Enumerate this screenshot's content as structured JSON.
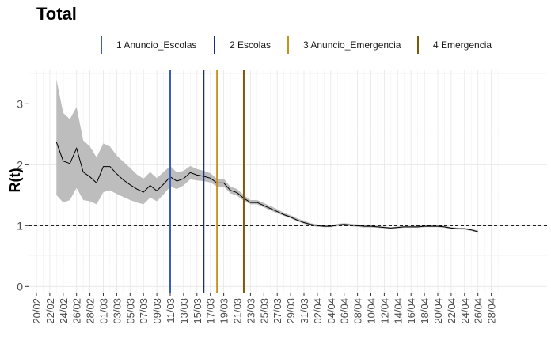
{
  "chart_data": {
    "type": "line",
    "title": "Total",
    "xlabel": "",
    "ylabel": "R(t)",
    "ylim": [
      -0.1,
      3.55
    ],
    "yticks": [
      0,
      1,
      2,
      3
    ],
    "x_tick_labels": [
      "20/02",
      "22/02",
      "24/02",
      "26/02",
      "28/02",
      "01/03",
      "03/03",
      "05/03",
      "07/03",
      "09/03",
      "11/03",
      "13/03",
      "15/03",
      "17/03",
      "19/03",
      "21/03",
      "23/03",
      "25/03",
      "27/03",
      "29/03",
      "31/03",
      "02/04",
      "04/04",
      "06/04",
      "08/04",
      "10/04",
      "12/04",
      "14/04",
      "16/04",
      "18/04",
      "20/04",
      "22/04",
      "24/04",
      "26/04",
      "28/04"
    ],
    "grid": true,
    "reference_line": {
      "y": 1,
      "style": "dashed"
    },
    "x": [
      "23/02",
      "24/02",
      "25/02",
      "26/02",
      "27/02",
      "28/02",
      "29/02",
      "01/03",
      "02/03",
      "03/03",
      "04/03",
      "05/03",
      "06/03",
      "07/03",
      "08/03",
      "09/03",
      "10/03",
      "11/03",
      "12/03",
      "13/03",
      "14/03",
      "15/03",
      "16/03",
      "17/03",
      "18/03",
      "19/03",
      "20/03",
      "21/03",
      "22/03",
      "23/03",
      "24/03",
      "25/03",
      "26/03",
      "27/03",
      "28/03",
      "29/03",
      "30/03",
      "31/03",
      "01/04",
      "02/04",
      "03/04",
      "04/04",
      "05/04",
      "06/04",
      "07/04",
      "08/04",
      "09/04",
      "10/04",
      "11/04",
      "12/04",
      "13/04",
      "14/04",
      "15/04",
      "16/04",
      "17/04",
      "18/04",
      "19/04",
      "20/04",
      "21/04",
      "22/04",
      "23/04",
      "24/04",
      "25/04",
      "26/04"
    ],
    "series": [
      {
        "values": [
          2.37,
          2.06,
          2.02,
          2.27,
          1.88,
          1.8,
          1.7,
          1.97,
          1.97,
          1.85,
          1.75,
          1.67,
          1.6,
          1.55,
          1.66,
          1.57,
          1.68,
          1.8,
          1.73,
          1.77,
          1.87,
          1.83,
          1.81,
          1.78,
          1.7,
          1.7,
          1.58,
          1.54,
          1.45,
          1.38,
          1.38,
          1.33,
          1.28,
          1.23,
          1.18,
          1.14,
          1.09,
          1.05,
          1.02,
          1.0,
          0.99,
          0.99,
          1.01,
          1.02,
          1.01,
          1.0,
          0.99,
          0.99,
          0.98,
          0.97,
          0.96,
          0.97,
          0.98,
          0.98,
          0.98,
          0.99,
          0.99,
          0.99,
          0.98,
          0.96,
          0.95,
          0.95,
          0.93,
          0.9
        ],
        "lower": [
          1.5,
          1.38,
          1.42,
          1.62,
          1.42,
          1.4,
          1.35,
          1.55,
          1.58,
          1.52,
          1.47,
          1.42,
          1.38,
          1.35,
          1.46,
          1.4,
          1.51,
          1.64,
          1.6,
          1.66,
          1.76,
          1.74,
          1.73,
          1.71,
          1.64,
          1.64,
          1.53,
          1.49,
          1.41,
          1.35,
          1.35,
          1.3,
          1.25,
          1.2,
          1.16,
          1.12,
          1.07,
          1.03,
          1.0,
          0.98,
          0.975,
          0.975,
          0.99,
          1.0,
          0.99,
          0.98,
          0.97,
          0.97,
          0.965,
          0.955,
          0.945,
          0.955,
          0.965,
          0.965,
          0.965,
          0.975,
          0.975,
          0.975,
          0.965,
          0.945,
          0.935,
          0.935,
          0.915,
          0.88
        ],
        "upper": [
          3.4,
          2.85,
          2.75,
          2.95,
          2.4,
          2.3,
          2.12,
          2.35,
          2.3,
          2.15,
          2.05,
          1.95,
          1.84,
          1.77,
          1.88,
          1.78,
          1.88,
          1.98,
          1.87,
          1.9,
          1.98,
          1.93,
          1.9,
          1.86,
          1.77,
          1.77,
          1.64,
          1.6,
          1.5,
          1.42,
          1.42,
          1.37,
          1.32,
          1.27,
          1.21,
          1.17,
          1.12,
          1.08,
          1.04,
          1.02,
          1.005,
          1.005,
          1.03,
          1.04,
          1.03,
          1.02,
          1.01,
          1.01,
          0.995,
          0.985,
          0.975,
          0.985,
          0.995,
          0.995,
          0.995,
          1.005,
          1.005,
          1.005,
          0.995,
          0.975,
          0.965,
          0.965,
          0.945,
          0.92
        ]
      }
    ],
    "events": [
      {
        "label": "1 Anuncio_Escolas",
        "date": "11/03",
        "color": "#3a5fb5"
      },
      {
        "label": "2 Escolas",
        "date": "16/03",
        "color": "#1f2f7a"
      },
      {
        "label": "3 Anuncio_Emergencia",
        "date": "18/03",
        "color": "#c8921a"
      },
      {
        "label": "4 Emergencia",
        "date": "22/03",
        "color": "#7a5a08"
      }
    ],
    "legend_placement": "top"
  }
}
